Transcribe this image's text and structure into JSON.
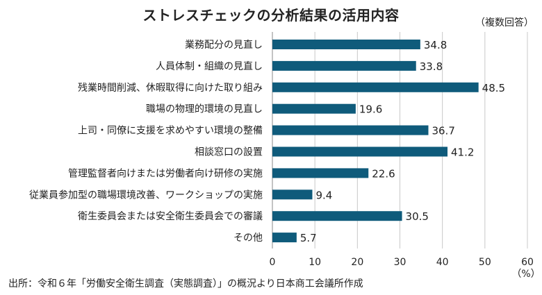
{
  "chart_data": {
    "type": "bar",
    "orientation": "horizontal",
    "title": "ストレスチェックの分析結果の活用内容",
    "note": "（複数回答）",
    "xlabel": "（%）",
    "xlim": [
      0,
      60
    ],
    "xticks": [
      0,
      10,
      20,
      30,
      40,
      50,
      60
    ],
    "grid": true,
    "categories": [
      "業務配分の見直し",
      "人員体制・組織の見直し",
      "残業時間削減、休暇取得に向けた取り組み",
      "職場の物理的環境の見直し",
      "上司・同僚に支援を求めやすい環境の整備",
      "相談窓口の設置",
      "管理監督者向けまたは労働者向け研修の実施",
      "従業員参加型の職場環境改善、ワークショップの実施",
      "衛生委員会または安全衛生委員会での審議",
      "その他"
    ],
    "values": [
      34.8,
      33.8,
      48.5,
      19.6,
      36.7,
      41.2,
      22.6,
      9.4,
      30.5,
      5.7
    ],
    "value_labels": [
      "34.8",
      "33.8",
      "48.5",
      "19.6",
      "36.7",
      "41.2",
      "22.6",
      "9.4",
      "30.5",
      "5.7"
    ],
    "bar_color": "#0f5b7b",
    "source": "出所：令和６年「労働安全衛生調査（実態調査）」の概況より日本商工会議所作成"
  }
}
